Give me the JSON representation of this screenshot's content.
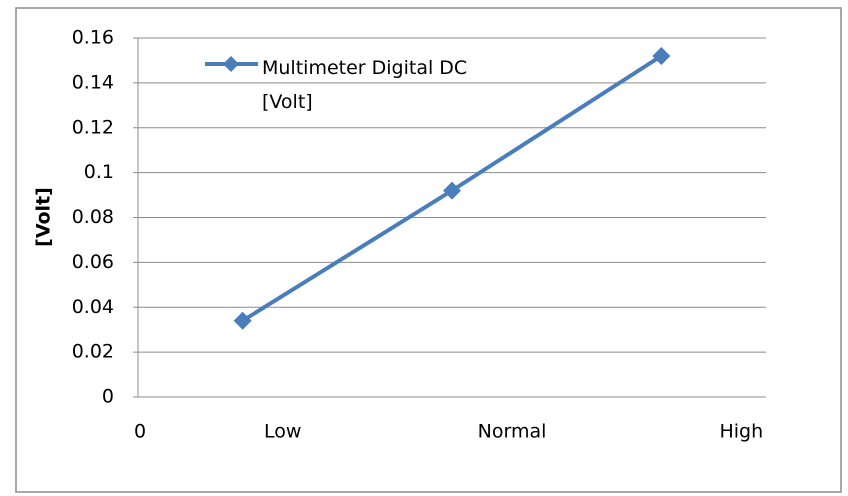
{
  "chart_data": {
    "type": "line",
    "y_axis_label": "[Volt]",
    "x_axis_start_label": "0",
    "categories": [
      "Low",
      "Normal",
      "High"
    ],
    "series": [
      {
        "name": "Multimeter Digital DC [Volt]",
        "color": "#4a7ebb",
        "values": [
          0.034,
          0.092,
          0.152
        ]
      }
    ],
    "ylim": [
      0,
      0.16
    ],
    "yticks": [
      0,
      0.02,
      0.04,
      0.06,
      0.08,
      0.1,
      0.12,
      0.14,
      0.16
    ],
    "grid": true,
    "legend": "top-left"
  }
}
